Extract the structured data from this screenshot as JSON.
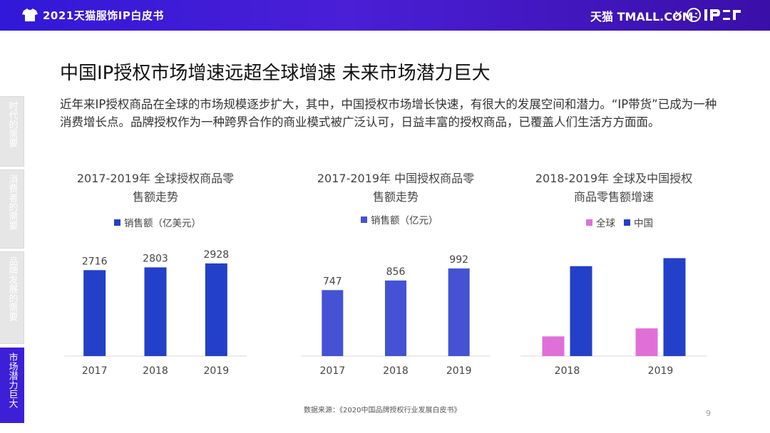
{
  "header": {
    "doc_title": "2021天猫服饰IP白皮书",
    "brand_tmall": "天猫 TMALL.COM",
    "brand_sep": "×"
  },
  "side_nav": [
    {
      "label": "时代的需要",
      "active": false
    },
    {
      "label": "消费者的需要",
      "active": false
    },
    {
      "label": "品牌发展的需要",
      "active": false
    },
    {
      "label": "市场潜力巨大",
      "active": true
    }
  ],
  "page_title": "中国IP授权市场增速远超全球增速 未来市场潜力巨大",
  "intro": "近年来IP授权商品在全球的市场规模逐步扩大，其中，中国授权市场增长快速，有很大的发展空间和潜力。“IP带货”已成为一种消费增长点。品牌授权作为一种跨界合作的商业模式被广泛认可，日益丰富的授权商品，已覆盖人们生活方方面面。",
  "chart_data": [
    {
      "type": "bar",
      "title_line1": "2017-2019年 全球授权商品零",
      "title_line2": "售额走势",
      "categories": [
        "2017",
        "2018",
        "2019"
      ],
      "series": [
        {
          "name": "销售额（亿美元）",
          "values": [
            2716,
            2803,
            2928
          ],
          "color": "#2340c8"
        }
      ],
      "show_labels": true,
      "ylim": [
        0,
        3600
      ]
    },
    {
      "type": "bar",
      "title_line1": "2017-2019年 中国授权商品零",
      "title_line2": "售额走势",
      "categories": [
        "2017",
        "2018",
        "2019"
      ],
      "series": [
        {
          "name": "销售额（亿元）",
          "values": [
            747,
            856,
            992
          ],
          "color": "#4353d4"
        }
      ],
      "show_labels": true,
      "ylim": [
        0,
        1290
      ]
    },
    {
      "type": "bar",
      "title_line1": "2018-2019年 全球及中国授权",
      "title_line2": "商品零售额增速",
      "categories": [
        "2018",
        "2019"
      ],
      "series": [
        {
          "name": "全球",
          "values": [
            3.2,
            4.5
          ],
          "color": "#e070d8"
        },
        {
          "name": "中国",
          "values": [
            14.6,
            15.9
          ],
          "color": "#2340c8"
        }
      ],
      "show_labels": false,
      "ylim": [
        0,
        18.5
      ]
    }
  ],
  "footer": {
    "source": "数据来源：《2020中国品牌授权行业发展白皮书》",
    "page_number": "9"
  }
}
